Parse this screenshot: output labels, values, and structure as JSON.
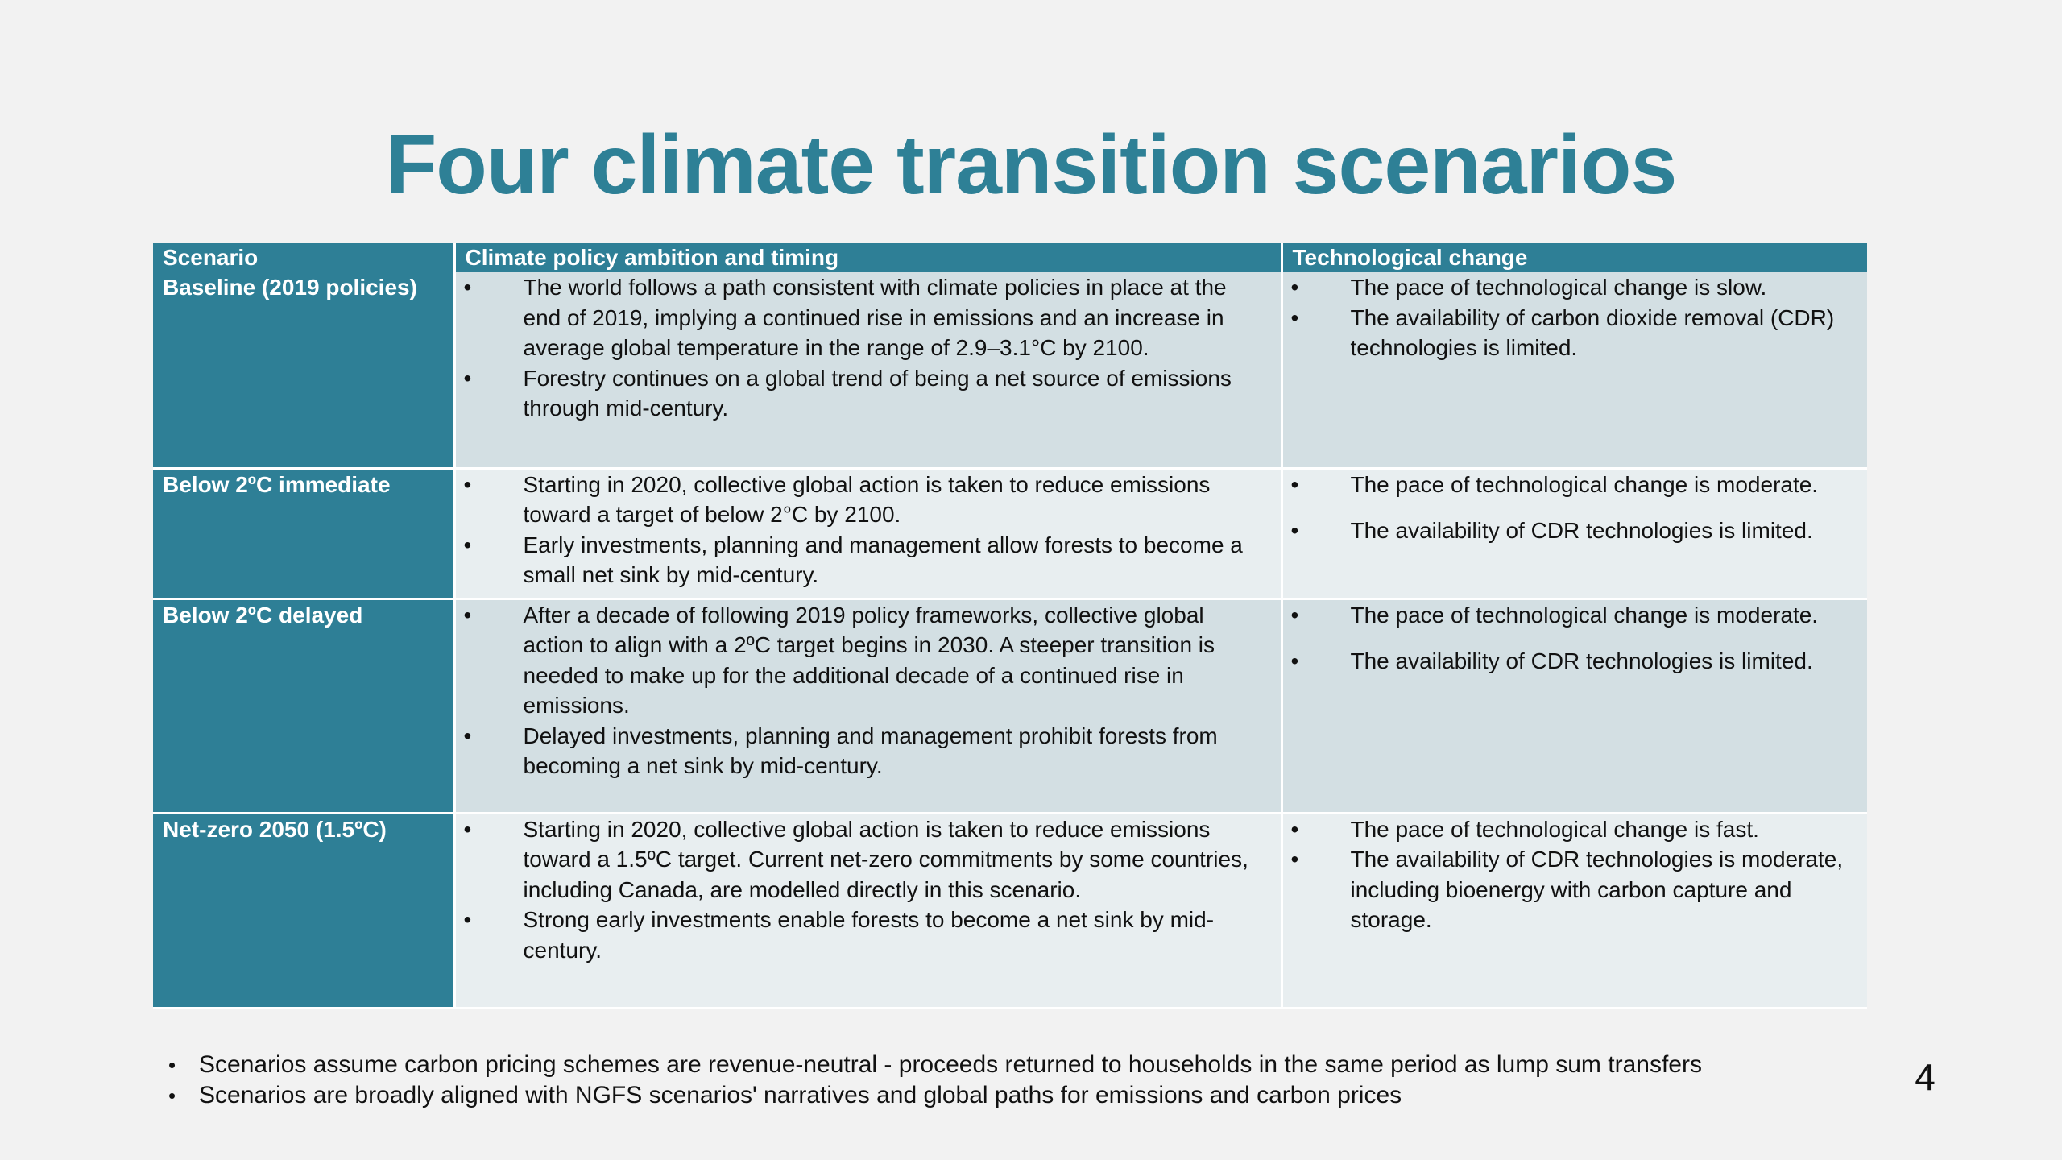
{
  "slide": {
    "title": "Four climate transition scenarios",
    "page_number": "4"
  },
  "table": {
    "headers": [
      "Scenario",
      "Climate policy ambition and timing",
      "Technological change"
    ],
    "rows": [
      {
        "scenario": "Baseline (2019 policies)",
        "policy": [
          "The world follows a path consistent with climate policies in place at the end of 2019, implying a continued rise in emissions and an increase in average global temperature in the range of 2.9–3.1°C by 2100.",
          "Forestry continues on a global trend of being a net source of emissions through mid-century."
        ],
        "tech": [
          "The pace of technological change is slow.",
          "The availability of carbon dioxide removal (CDR) technologies is limited."
        ]
      },
      {
        "scenario": "Below 2ºC immediate",
        "policy": [
          "Starting in 2020, collective global action is taken to reduce emissions toward a target of below 2°C by 2100.",
          "Early investments, planning and management allow forests to become a small net sink by mid-century."
        ],
        "tech": [
          "The pace of technological change is moderate.",
          "The availability of CDR technologies is limited."
        ]
      },
      {
        "scenario": "Below 2ºC delayed",
        "policy": [
          "After a decade of following 2019 policy frameworks, collective global action to align with a 2ºC target begins in 2030. A steeper transition is needed to make up for the additional decade of a continued rise in emissions.",
          "Delayed investments, planning and management prohibit forests from becoming a net sink by mid-century."
        ],
        "tech": [
          "The pace of technological change is moderate.",
          "The availability of CDR technologies is limited."
        ]
      },
      {
        "scenario": "Net-zero 2050 (1.5ºC)",
        "policy": [
          "Starting in 2020, collective global action is taken to reduce emissions toward a 1.5ºC target. Current net-zero commitments by some countries, including Canada, are modelled directly in this scenario.",
          "Strong early investments enable forests to become a net sink by mid-century."
        ],
        "tech": [
          "The pace of technological change is fast.",
          "The availability of CDR technologies is moderate, including bioenergy with carbon capture and storage."
        ]
      }
    ]
  },
  "notes": [
    "Scenarios assume carbon pricing schemes are revenue-neutral - proceeds returned to households in the same period as lump sum transfers",
    "Scenarios are broadly aligned with NGFS scenarios' narratives and global paths for emissions and carbon prices"
  ]
}
